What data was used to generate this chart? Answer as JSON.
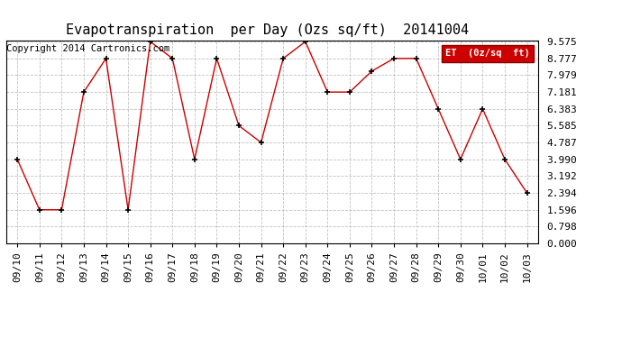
{
  "title": "Evapotranspiration  per Day (Ozs sq/ft)  20141004",
  "copyright": "Copyright 2014 Cartronics.com",
  "legend_label": "ET  (0z/sq  ft)",
  "dates": [
    "09/10",
    "09/11",
    "09/12",
    "09/13",
    "09/14",
    "09/15",
    "09/16",
    "09/17",
    "09/18",
    "09/19",
    "09/20",
    "09/21",
    "09/22",
    "09/23",
    "09/24",
    "09/25",
    "09/26",
    "09/27",
    "09/28",
    "09/29",
    "09/30",
    "10/01",
    "10/02",
    "10/03"
  ],
  "values": [
    3.99,
    1.596,
    1.596,
    7.181,
    8.777,
    1.596,
    9.575,
    8.777,
    3.99,
    8.777,
    5.585,
    4.787,
    8.777,
    9.575,
    7.181,
    7.181,
    8.177,
    8.777,
    8.777,
    6.383,
    3.99,
    6.383,
    3.99,
    2.394
  ],
  "yticks": [
    0.0,
    0.798,
    1.596,
    2.394,
    3.192,
    3.99,
    4.787,
    5.585,
    6.383,
    7.181,
    7.979,
    8.777,
    9.575
  ],
  "ylim": [
    0.0,
    9.575
  ],
  "line_color": "#cc0000",
  "marker_color": "#000000",
  "legend_bg": "#cc0000",
  "legend_text_color": "#ffffff",
  "background_color": "#ffffff",
  "grid_color": "#bbbbbb",
  "title_fontsize": 11,
  "tick_fontsize": 8,
  "copyright_fontsize": 7.5
}
